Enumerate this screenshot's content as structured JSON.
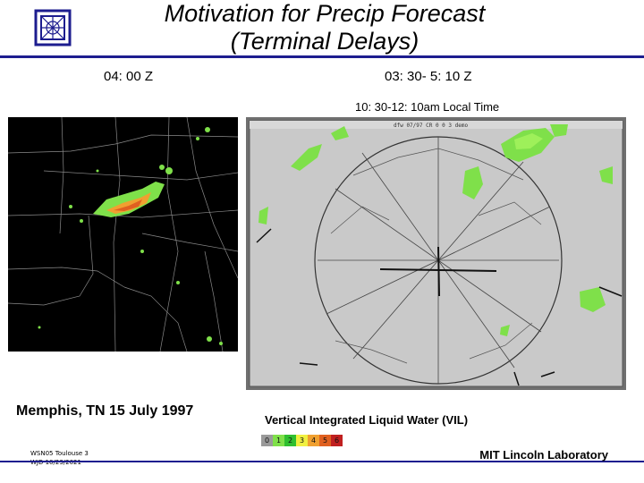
{
  "header": {
    "title_line1": "Motivation for Precip Forecast",
    "title_line2": "(Terminal Delays)"
  },
  "left_panel": {
    "time_label": "04: 00 Z",
    "location_caption": "Memphis, TN 15 July 1997"
  },
  "right_panel": {
    "time_label": "03: 30- 5: 10 Z",
    "local_time_label": "10: 30-12: 10am Local Time",
    "caption": "Vertical Integrated Liquid Water (VIL)",
    "screen_header_text": "dfw 07/97 CR 0 0 3 demo"
  },
  "legend": {
    "levels": [
      {
        "label": "0",
        "color": "#9a9a9a"
      },
      {
        "label": "1",
        "color": "#7fe04a"
      },
      {
        "label": "2",
        "color": "#2fbf2f"
      },
      {
        "label": "3",
        "color": "#f0f040"
      },
      {
        "label": "4",
        "color": "#f0a030"
      },
      {
        "label": "5",
        "color": "#e06020"
      },
      {
        "label": "6",
        "color": "#c02020"
      }
    ]
  },
  "footer": {
    "small_line1": "WSN05 Toulouse 3",
    "small_line2": "WJD 10/23/2021",
    "lab_name": "MIT Lincoln Laboratory"
  },
  "colors": {
    "rule": "#1d1d8f",
    "precip_green": "#7fe04a",
    "precip_light": "#9ef05a",
    "precip_orange": "#f0a030"
  }
}
